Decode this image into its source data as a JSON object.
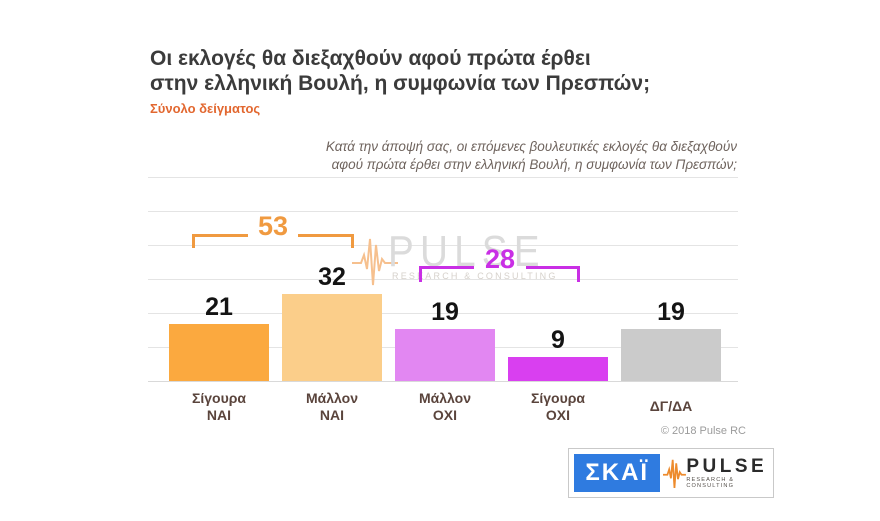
{
  "header": {
    "title_lines": [
      "Οι εκλογές θα διεξαχθούν αφού πρώτα έρθει",
      "στην ελληνική Βουλή, η συμφωνία των Πρεσπών;"
    ],
    "sample_label": "Σύνολο δείγματος",
    "question_lines": [
      "Κατά την άποψή σας, οι επόμενες βουλευτικές εκλογές θα διεξαχθούν",
      "αφού πρώτα έρθει στην ελληνική Βουλή, η συμφωνία των Πρεσπών;"
    ]
  },
  "chart_data": {
    "type": "bar",
    "categories": [
      "Σίγουρα\nΝΑΙ",
      "Μάλλον\nΝΑΙ",
      "Μάλλον\nΟΧΙ",
      "Σίγουρα\nΟΧΙ",
      "ΔΓ/ΔΑ"
    ],
    "values": [
      21,
      32,
      19,
      9,
      19
    ],
    "bar_colors": [
      "#FBA93F",
      "#FBCE8A",
      "#E287F2",
      "#D93FF0",
      "#CBCBCB"
    ],
    "value_label_color": "#141414",
    "grid": true,
    "ylim": [
      0,
      62
    ],
    "legend": "none",
    "annotations": [
      {
        "label": "53",
        "span": [
          "Σίγουρα ΝΑΙ",
          "Μάλλον ΝΑΙ"
        ],
        "color": "#F09A40"
      },
      {
        "label": "28",
        "span": [
          "Μάλλον ΟΧΙ",
          "Σίγουρα ΟΧΙ"
        ],
        "color": "#C92FE5"
      }
    ]
  },
  "watermark": {
    "name": "PULSE",
    "tagline": "RESEARCH & CONSULTING",
    "waveform_icon": "ecg-waveform-icon",
    "text_color": "#DBDBDB",
    "waveform_color": "#F6C08E"
  },
  "footnote": {
    "copyright": "© 2018 Pulse RC"
  },
  "footer": {
    "skai_logo_text": "ΣΚΑΪ",
    "skai_blue": "#2F7BE0",
    "pulse_logo_text": "PULSE",
    "pulse_tagline": "RESEARCH & CONSULTING",
    "pulse_orange": "#ED8B2D"
  }
}
